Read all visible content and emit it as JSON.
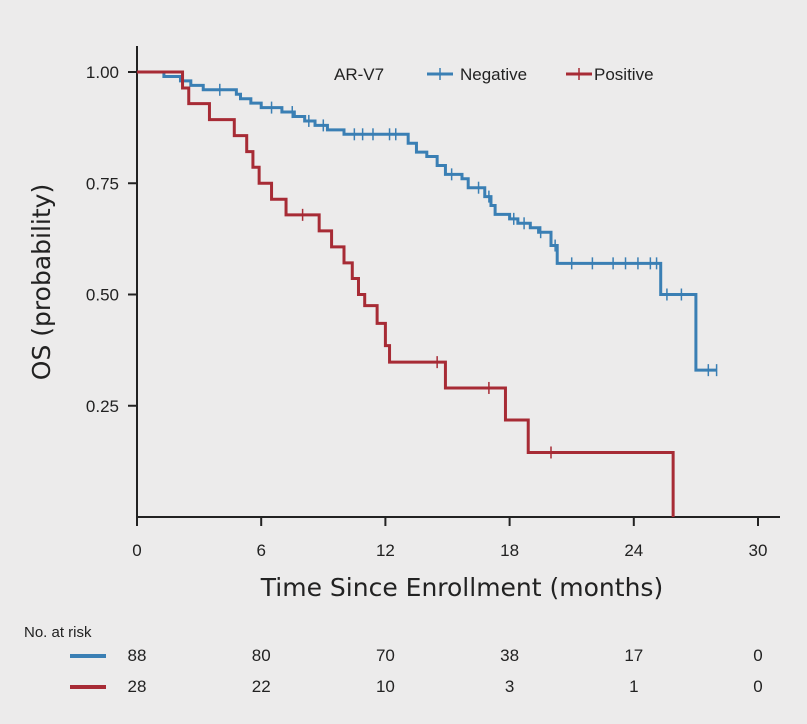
{
  "chart_data": {
    "type": "line",
    "subtype": "kaplan-meier",
    "ylabel": "OS (probability)",
    "xlabel": "Time Since Enrollment (months)",
    "xlim": [
      0,
      30
    ],
    "ylim": [
      0,
      1
    ],
    "x_ticks": [
      0,
      6,
      12,
      18,
      24,
      30
    ],
    "x_tick_labels": [
      "0",
      "6",
      "12",
      "18",
      "24",
      "30"
    ],
    "y_ticks": [
      0.25,
      0.5,
      0.75,
      1.0
    ],
    "y_tick_labels": [
      "0.25",
      "0.50",
      "0.75",
      "1.00"
    ],
    "grid": false,
    "legend": {
      "title": "AR-V7",
      "placement": "top-right",
      "entries": [
        "Negative",
        "Positive"
      ]
    },
    "series": [
      {
        "name": "Negative",
        "color": "#3a7fb4",
        "steps": [
          [
            0,
            1.0
          ],
          [
            1.3,
            0.99
          ],
          [
            2.1,
            0.98
          ],
          [
            2.6,
            0.97
          ],
          [
            3.2,
            0.96
          ],
          [
            4.8,
            0.95
          ],
          [
            5.0,
            0.94
          ],
          [
            5.5,
            0.93
          ],
          [
            6.0,
            0.92
          ],
          [
            7.0,
            0.91
          ],
          [
            7.6,
            0.9
          ],
          [
            8.1,
            0.89
          ],
          [
            8.6,
            0.88
          ],
          [
            9.2,
            0.87
          ],
          [
            10.0,
            0.86
          ],
          [
            11.5,
            0.86
          ],
          [
            13.1,
            0.84
          ],
          [
            13.5,
            0.82
          ],
          [
            14.0,
            0.81
          ],
          [
            14.5,
            0.79
          ],
          [
            14.9,
            0.77
          ],
          [
            15.7,
            0.76
          ],
          [
            16.0,
            0.74
          ],
          [
            16.8,
            0.72
          ],
          [
            17.1,
            0.7
          ],
          [
            17.3,
            0.68
          ],
          [
            18.0,
            0.67
          ],
          [
            18.4,
            0.66
          ],
          [
            19.0,
            0.65
          ],
          [
            19.4,
            0.64
          ],
          [
            20.0,
            0.61
          ],
          [
            20.3,
            0.57
          ],
          [
            25.3,
            0.5
          ],
          [
            27.0,
            0.33
          ],
          [
            28.0,
            0.33
          ]
        ],
        "censor_x": [
          4.0,
          6.5,
          7.5,
          8.3,
          9.0,
          10.5,
          10.9,
          11.4,
          12.2,
          12.5,
          15.2,
          16.5,
          17.0,
          18.2,
          18.7,
          19.5,
          20.2,
          21.0,
          22.0,
          23.0,
          23.6,
          24.2,
          24.8,
          25.1,
          25.6,
          26.3,
          27.6,
          28.0
        ],
        "at_risk": [
          88,
          80,
          70,
          38,
          17,
          0
        ]
      },
      {
        "name": "Positive",
        "color": "#a72b35",
        "steps": [
          [
            0,
            1.0
          ],
          [
            2.2,
            0.964
          ],
          [
            2.5,
            0.929
          ],
          [
            3.5,
            0.893
          ],
          [
            4.7,
            0.857
          ],
          [
            5.3,
            0.821
          ],
          [
            5.6,
            0.786
          ],
          [
            5.9,
            0.75
          ],
          [
            6.5,
            0.714
          ],
          [
            7.2,
            0.679
          ],
          [
            8.8,
            0.643
          ],
          [
            9.4,
            0.607
          ],
          [
            10.0,
            0.571
          ],
          [
            10.4,
            0.536
          ],
          [
            10.7,
            0.5
          ],
          [
            11.0,
            0.475
          ],
          [
            11.6,
            0.435
          ],
          [
            12.0,
            0.385
          ],
          [
            12.2,
            0.348
          ],
          [
            14.9,
            0.29
          ],
          [
            17.8,
            0.218
          ],
          [
            18.9,
            0.145
          ],
          [
            25.9,
            0.0
          ]
        ],
        "censor_x": [
          8.0,
          14.5,
          17.0,
          20.0
        ],
        "at_risk": [
          28,
          22,
          10,
          3,
          1,
          0
        ]
      }
    ],
    "at_risk_title": "No. at risk",
    "at_risk_x": [
      0,
      6,
      12,
      18,
      24,
      30
    ]
  }
}
